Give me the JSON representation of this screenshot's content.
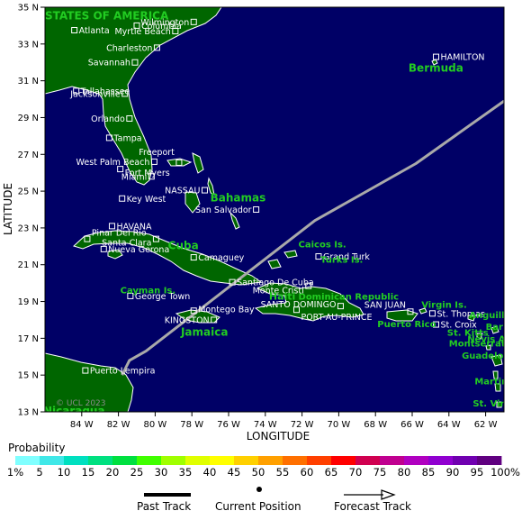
{
  "axes": {
    "xlabel": "LONGITUDE",
    "ylabel": "LATITUDE",
    "lon_range": [
      -86,
      -61
    ],
    "lat_range": [
      13,
      35
    ],
    "lon_ticks": [
      {
        "lon": -84,
        "label": "84 W"
      },
      {
        "lon": -82,
        "label": "82 W"
      },
      {
        "lon": -80,
        "label": "80 W"
      },
      {
        "lon": -78,
        "label": "78 W"
      },
      {
        "lon": -76,
        "label": "76 W"
      },
      {
        "lon": -74,
        "label": "74 W"
      },
      {
        "lon": -72,
        "label": "72 W"
      },
      {
        "lon": -70,
        "label": "70 W"
      },
      {
        "lon": -68,
        "label": "68 W"
      },
      {
        "lon": -66,
        "label": "66 W"
      },
      {
        "lon": -64,
        "label": "64 W"
      },
      {
        "lon": -62,
        "label": "62 W"
      }
    ],
    "lat_ticks": [
      {
        "lat": 35,
        "label": "35 N"
      },
      {
        "lat": 33,
        "label": "33 N"
      },
      {
        "lat": 31,
        "label": "31 N"
      },
      {
        "lat": 29,
        "label": "29 N"
      },
      {
        "lat": 27,
        "label": "27 N"
      },
      {
        "lat": 25,
        "label": "25 N"
      },
      {
        "lat": 23,
        "label": "23 N"
      },
      {
        "lat": 21,
        "label": "21 N"
      },
      {
        "lat": 19,
        "label": "19 N"
      },
      {
        "lat": 17,
        "label": "17 N"
      },
      {
        "lat": 15,
        "label": "15 N"
      },
      {
        "lat": 13,
        "label": "13 N"
      }
    ]
  },
  "colors": {
    "ocean": "#000066",
    "land": "#006600",
    "coast": "#ffffff",
    "track": "#a9a9a9",
    "region_label": "#22cc22"
  },
  "cities": [
    {
      "name": "Wilmington",
      "lon": -77.9,
      "lat": 34.2,
      "side": "left"
    },
    {
      "name": "Columbia",
      "lon": -81.0,
      "lat": 34.0,
      "side": "right"
    },
    {
      "name": "Atlanta",
      "lon": -84.4,
      "lat": 33.75,
      "side": "right"
    },
    {
      "name": "Myrtle Beach",
      "lon": -78.9,
      "lat": 33.7,
      "side": "left"
    },
    {
      "name": "Charleston",
      "lon": -79.9,
      "lat": 32.8,
      "side": "left"
    },
    {
      "name": "Savannah",
      "lon": -81.1,
      "lat": 32.0,
      "side": "left"
    },
    {
      "name": "Tallahassee",
      "lon": -84.3,
      "lat": 30.45,
      "side": "right"
    },
    {
      "name": "Jacksonville",
      "lon": -81.65,
      "lat": 30.3,
      "side": "left"
    },
    {
      "name": "Orlando",
      "lon": -81.4,
      "lat": 28.95,
      "side": "left"
    },
    {
      "name": "Tampa",
      "lon": -82.5,
      "lat": 27.9,
      "side": "right"
    },
    {
      "name": "Freeport",
      "lon": -78.7,
      "lat": 26.55,
      "side": "left",
      "dy": -12
    },
    {
      "name": "West Palm Beach",
      "lon": -80.05,
      "lat": 26.6,
      "side": "left"
    },
    {
      "name": "Fort Myers",
      "lon": -81.9,
      "lat": 26.2,
      "side": "right",
      "dy": 4
    },
    {
      "name": "Miami",
      "lon": -80.2,
      "lat": 25.8,
      "side": "left"
    },
    {
      "name": "NASSAU",
      "lon": -77.3,
      "lat": 25.05,
      "side": "left"
    },
    {
      "name": "Key West",
      "lon": -81.8,
      "lat": 24.6,
      "side": "right"
    },
    {
      "name": "San Salvador",
      "lon": -74.5,
      "lat": 24.0,
      "side": "left"
    },
    {
      "name": "HAVANA",
      "lon": -82.35,
      "lat": 23.1,
      "side": "right"
    },
    {
      "name": "Pinar Del Rio",
      "lon": -83.7,
      "lat": 22.4,
      "side": "right",
      "dy": -7
    },
    {
      "name": "Santa Clara",
      "lon": -79.95,
      "lat": 22.4,
      "side": "left",
      "dy": 4
    },
    {
      "name": "Nueva Gerona",
      "lon": -82.8,
      "lat": 21.85,
      "side": "right"
    },
    {
      "name": "Camaguey",
      "lon": -77.9,
      "lat": 21.4,
      "side": "right"
    },
    {
      "name": "Grand Turk",
      "lon": -71.1,
      "lat": 21.45,
      "side": "right"
    },
    {
      "name": "Santiago De Cuba",
      "lon": -75.8,
      "lat": 20.05,
      "side": "right"
    },
    {
      "name": "Monte Cristi",
      "lon": -71.65,
      "lat": 19.85,
      "side": "left",
      "dy": 5
    },
    {
      "name": "George Town",
      "lon": -81.35,
      "lat": 19.3,
      "side": "right"
    },
    {
      "name": "SANTO DOMINGO",
      "lon": -69.9,
      "lat": 18.75,
      "side": "left",
      "dy": -2
    },
    {
      "name": "SAN JUAN",
      "lon": -66.1,
      "lat": 18.45,
      "side": "left",
      "dy": -8
    },
    {
      "name": "Montego Bay",
      "lon": -77.9,
      "lat": 18.5,
      "side": "right",
      "dy": -2
    },
    {
      "name": "St. Thomas",
      "lon": -64.9,
      "lat": 18.35,
      "side": "right"
    },
    {
      "name": "KINGSTON",
      "lon": -76.8,
      "lat": 18.0,
      "side": "left"
    },
    {
      "name": "PORT-AU-PRINCE",
      "lon": -72.3,
      "lat": 18.55,
      "side": "right",
      "dy": 8
    },
    {
      "name": "St. Croix",
      "lon": -64.7,
      "lat": 17.75,
      "side": "right"
    },
    {
      "name": "HAMILTON",
      "lon": -64.7,
      "lat": 32.3,
      "side": "right"
    },
    {
      "name": "Puerto Lempira",
      "lon": -83.8,
      "lat": 15.25,
      "side": "right"
    }
  ],
  "regions": [
    {
      "name": "STATES OF AMERICA",
      "lon": -86.0,
      "lat": 34.35,
      "size": 12
    },
    {
      "name": "Bermuda",
      "lon": -66.2,
      "lat": 31.5,
      "size": 12
    },
    {
      "name": "Bahamas",
      "lon": -77.0,
      "lat": 24.45,
      "size": 12
    },
    {
      "name": "Cuba",
      "lon": -79.3,
      "lat": 21.85,
      "size": 12
    },
    {
      "name": "Caicos Is.",
      "lon": -72.2,
      "lat": 21.95,
      "size": 10
    },
    {
      "name": "Turks Is.",
      "lon": -71.0,
      "lat": 21.1,
      "size": 10
    },
    {
      "name": "Cayman Is.",
      "lon": -81.9,
      "lat": 19.45,
      "size": 10
    },
    {
      "name": "Haiti",
      "lon": -73.8,
      "lat": 19.1,
      "size": 11
    },
    {
      "name": "Dominican Republic",
      "lon": -72.2,
      "lat": 19.1,
      "size": 10
    },
    {
      "name": "Virgin Is.",
      "lon": -65.5,
      "lat": 18.65,
      "size": 10
    },
    {
      "name": "Anguilla",
      "lon": -62.9,
      "lat": 18.1,
      "size": 10
    },
    {
      "name": "Jamaica",
      "lon": -78.6,
      "lat": 17.15,
      "size": 12
    },
    {
      "name": "Puerto Rico",
      "lon": -67.9,
      "lat": 17.6,
      "size": 10
    },
    {
      "name": "Barbuda",
      "lon": -62.0,
      "lat": 17.45,
      "size": 10
    },
    {
      "name": "St. Kitts",
      "lon": -64.1,
      "lat": 17.15,
      "size": 10
    },
    {
      "name": "Nevis Ant.",
      "lon": -63.0,
      "lat": 16.8,
      "size": 10
    },
    {
      "name": "Montserrat",
      "lon": -64.0,
      "lat": 16.55,
      "size": 10
    },
    {
      "name": "Guadeloupe",
      "lon": -63.3,
      "lat": 15.9,
      "size": 10
    },
    {
      "name": "Martinique",
      "lon": -62.6,
      "lat": 14.5,
      "size": 10
    },
    {
      "name": "St. Vincent",
      "lon": -62.7,
      "lat": 13.3,
      "size": 10
    },
    {
      "name": "Nicaragua",
      "lon": -86.1,
      "lat": 12.85,
      "size": 12
    }
  ],
  "track": {
    "points": [
      [
        -81.8,
        15.0
      ],
      [
        -81.4,
        15.8
      ],
      [
        -80.5,
        16.3
      ],
      [
        -71.3,
        23.4
      ],
      [
        -65.8,
        26.5
      ],
      [
        -61.0,
        29.9
      ]
    ]
  },
  "credit": "© UCL 2023",
  "probability": {
    "title": "Probability",
    "labels": [
      "1%",
      "5",
      "10",
      "15",
      "20",
      "25",
      "30",
      "35",
      "40",
      "45",
      "50",
      "55",
      "60",
      "65",
      "70",
      "75",
      "80",
      "85",
      "90",
      "95",
      "100%"
    ],
    "colors": [
      "#80ffff",
      "#40e8e8",
      "#00e0c0",
      "#00e080",
      "#00e040",
      "#40ff00",
      "#a0ff00",
      "#e0ff00",
      "#ffff00",
      "#ffd000",
      "#ffa000",
      "#ff7000",
      "#ff4000",
      "#ff0000",
      "#d00050",
      "#c00090",
      "#b000c0",
      "#9000d0",
      "#7000b0",
      "#600080"
    ]
  },
  "legend": {
    "past_track": "Past Track",
    "current_position": "Current Position",
    "forecast_track": "Forecast Track"
  }
}
